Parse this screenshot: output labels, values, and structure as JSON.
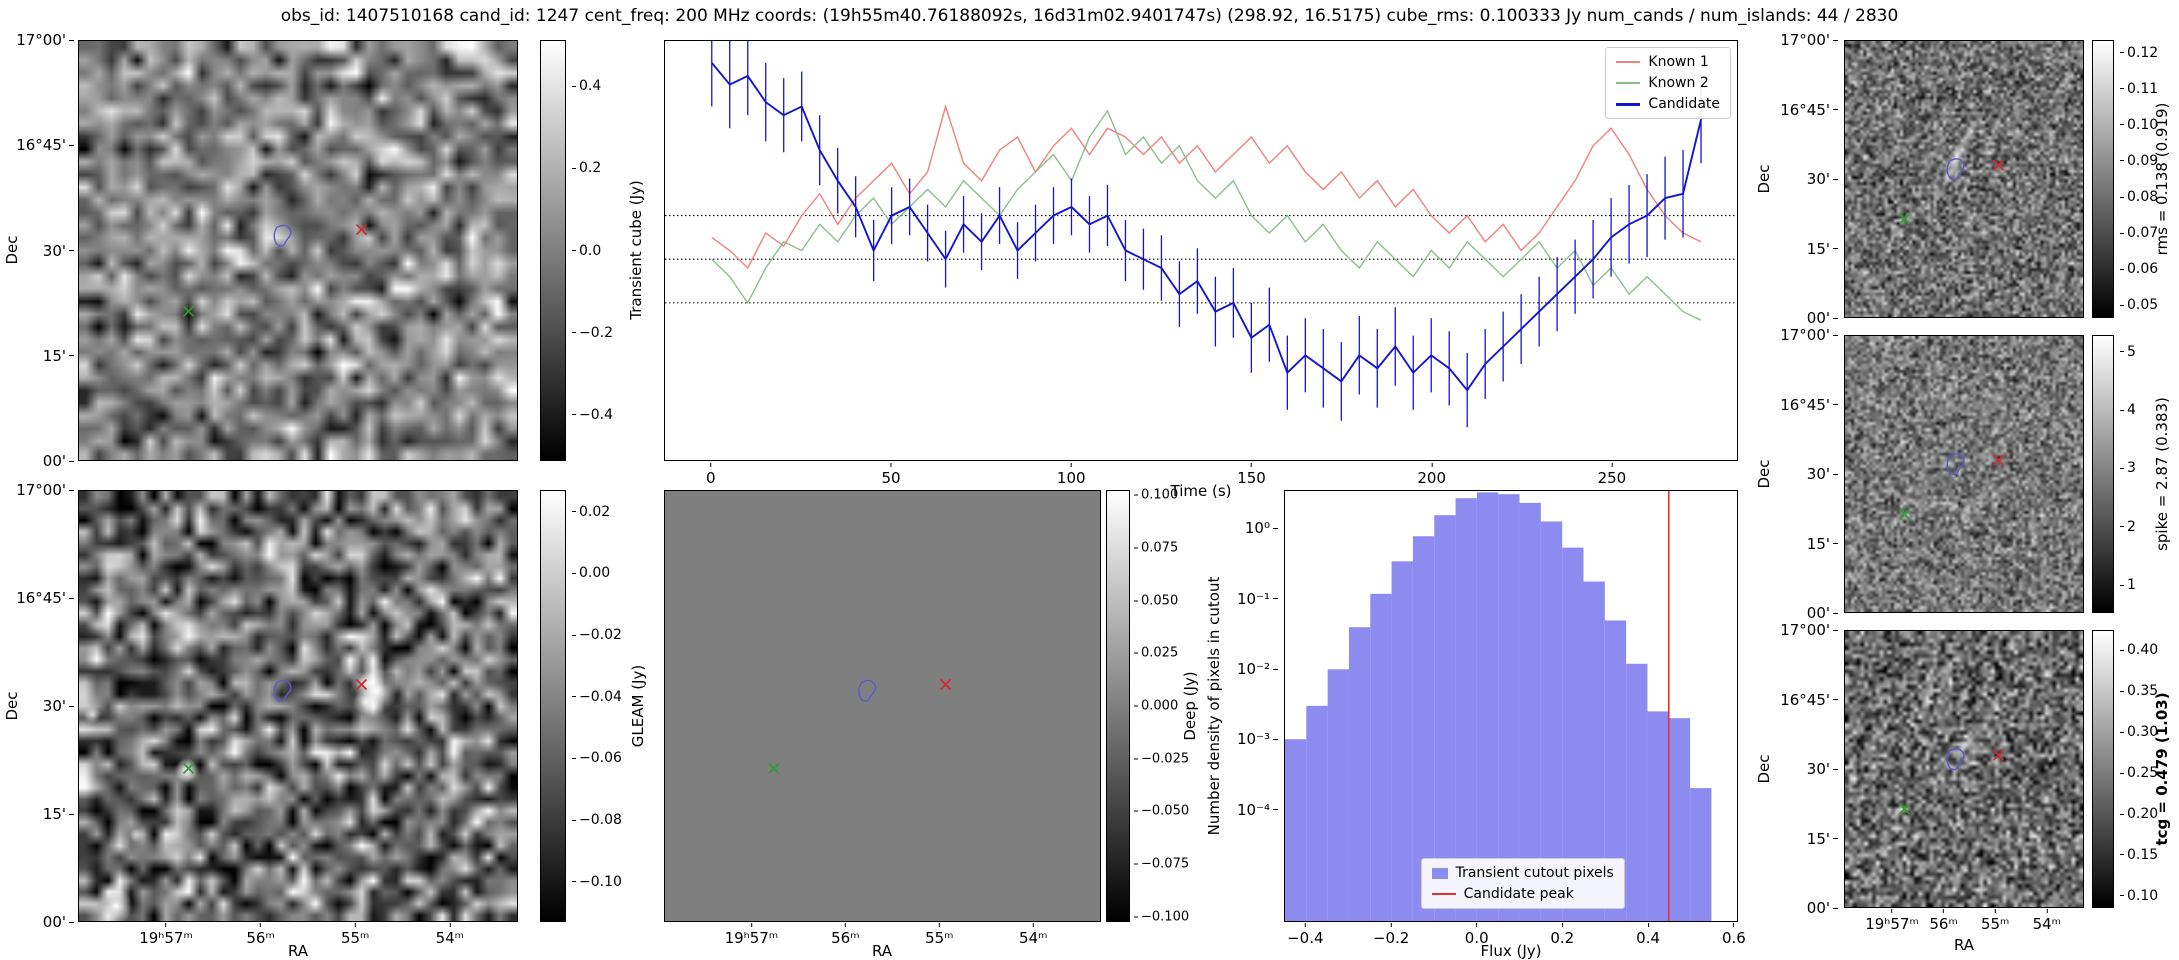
{
  "title": "obs_id: 1407510168 cand_id: 1247 cent_freq: 200 MHz coords: (19h55m40.76188092s, 16d31m02.9401747s) (298.92, 16.5175) cube_rms: 0.100333 Jy num_cands / num_islands: 44 / 2830",
  "axes": {
    "dec_label": "Dec",
    "ra_label": "RA",
    "dec_ticks": [
      "17°00'",
      "16°45'",
      "30'",
      "15'",
      "00'"
    ],
    "ra_ticks": [
      "19ʰ57ᵐ",
      "56ᵐ",
      "55ᵐ",
      "54ᵐ"
    ]
  },
  "colorbars": {
    "transient": {
      "label": "Transient cube (Jy)",
      "ticks": [
        "0.4",
        "0.2",
        "0.0",
        "−0.2",
        "−0.4"
      ]
    },
    "gleam": {
      "label": "GLEAM (Jy)",
      "ticks": [
        "0.02",
        "0.00",
        "−0.02",
        "−0.04",
        "−0.06",
        "−0.08",
        "−0.10"
      ]
    },
    "deep": {
      "label": "Deep (Jy)",
      "ticks": [
        "0.100",
        "0.075",
        "0.050",
        "0.025",
        "0.000",
        "−0.025",
        "−0.050",
        "−0.075",
        "−0.100"
      ]
    },
    "rms": {
      "label": "rms = 0.138 (0.919)",
      "ticks": [
        "0.12",
        "0.11",
        "0.10",
        "0.09",
        "0.08",
        "0.07",
        "0.06",
        "0.05"
      ]
    },
    "spike": {
      "label": "spike = 2.87 (0.383)",
      "ticks": [
        "5",
        "4",
        "3",
        "2",
        "1"
      ]
    },
    "tcg": {
      "label": "tcg = 0.479 (1.03)",
      "ticks": [
        "0.40",
        "0.35",
        "0.30",
        "0.25",
        "0.20",
        "0.15",
        "0.10"
      ]
    }
  },
  "markers": {
    "contour": {
      "x": 0.465,
      "y": 0.465
    },
    "red_x": {
      "x": 0.645,
      "y": 0.45
    },
    "green_x": {
      "x": 0.25,
      "y": 0.645
    }
  },
  "colors": {
    "contour": "#5a5acd",
    "red_marker": "#d42a2a",
    "green_marker": "#2f9e2f"
  },
  "chart_data": [
    {
      "type": "line",
      "title": "",
      "xlabel": "Time (s)",
      "ylabel": "",
      "xlim": [
        -13,
        285
      ],
      "ylim": [
        -0.46,
        0.5
      ],
      "x_tick_labels": [
        "0",
        "50",
        "100",
        "150",
        "200",
        "250"
      ],
      "hlines": [
        0.1,
        0.0,
        -0.1
      ],
      "legend_position": "upper right",
      "x": [
        0,
        5,
        10,
        15,
        20,
        25,
        30,
        35,
        40,
        45,
        50,
        55,
        60,
        65,
        70,
        75,
        80,
        85,
        90,
        95,
        100,
        105,
        110,
        115,
        120,
        125,
        130,
        135,
        140,
        145,
        150,
        155,
        160,
        165,
        170,
        175,
        180,
        185,
        190,
        195,
        200,
        205,
        210,
        215,
        220,
        225,
        230,
        235,
        240,
        245,
        250,
        255,
        260,
        265,
        270,
        275
      ],
      "series": [
        {
          "name": "Known 1",
          "color": "#f28080",
          "values": [
            0.05,
            0.02,
            -0.02,
            0.06,
            0.03,
            0.1,
            0.15,
            0.08,
            0.14,
            0.18,
            0.22,
            0.15,
            0.2,
            0.35,
            0.22,
            0.18,
            0.25,
            0.28,
            0.2,
            0.26,
            0.3,
            0.24,
            0.3,
            0.28,
            0.24,
            0.28,
            0.22,
            0.26,
            0.2,
            0.24,
            0.28,
            0.22,
            0.26,
            0.2,
            0.16,
            0.2,
            0.14,
            0.18,
            0.12,
            0.16,
            0.1,
            0.06,
            0.1,
            0.04,
            0.08,
            0.02,
            0.06,
            0.12,
            0.18,
            0.26,
            0.3,
            0.24,
            0.16,
            0.1,
            0.06,
            0.04
          ]
        },
        {
          "name": "Known 2",
          "color": "#8dbf8d",
          "values": [
            0.0,
            -0.04,
            -0.1,
            -0.02,
            0.04,
            0.02,
            0.08,
            0.04,
            0.1,
            0.14,
            0.08,
            0.12,
            0.16,
            0.12,
            0.18,
            0.14,
            0.1,
            0.16,
            0.2,
            0.24,
            0.18,
            0.28,
            0.34,
            0.24,
            0.28,
            0.22,
            0.26,
            0.18,
            0.14,
            0.18,
            0.1,
            0.06,
            0.1,
            0.04,
            0.08,
            0.02,
            -0.02,
            0.04,
            0.0,
            -0.04,
            0.02,
            -0.02,
            0.04,
            0.0,
            -0.04,
            0.0,
            0.04,
            -0.02,
            0.02,
            -0.06,
            -0.02,
            -0.08,
            -0.04,
            -0.08,
            -0.12,
            -0.14
          ]
        },
        {
          "name": "Candidate",
          "color": "#1515cf",
          "values": [
            0.45,
            0.4,
            0.42,
            0.36,
            0.33,
            0.35,
            0.25,
            0.18,
            0.12,
            0.02,
            0.1,
            0.12,
            0.06,
            0.0,
            0.08,
            0.04,
            0.1,
            0.02,
            0.06,
            0.1,
            0.12,
            0.08,
            0.1,
            0.02,
            0.0,
            -0.02,
            -0.08,
            -0.05,
            -0.12,
            -0.1,
            -0.18,
            -0.15,
            -0.26,
            -0.22,
            -0.25,
            -0.28,
            -0.22,
            -0.25,
            -0.2,
            -0.26,
            -0.22,
            -0.25,
            -0.3,
            -0.24,
            -0.2,
            -0.16,
            -0.12,
            -0.08,
            -0.04,
            0.0,
            0.05,
            0.08,
            0.1,
            0.14,
            0.15,
            0.32
          ],
          "errors": [
            0.1,
            0.1,
            0.09,
            0.09,
            0.085,
            0.08,
            0.08,
            0.075,
            0.07,
            0.07,
            0.065,
            0.065,
            0.065,
            0.065,
            0.065,
            0.065,
            0.065,
            0.065,
            0.065,
            0.065,
            0.065,
            0.065,
            0.07,
            0.07,
            0.07,
            0.075,
            0.075,
            0.075,
            0.08,
            0.08,
            0.08,
            0.085,
            0.085,
            0.085,
            0.09,
            0.09,
            0.09,
            0.09,
            0.09,
            0.085,
            0.085,
            0.085,
            0.085,
            0.08,
            0.08,
            0.08,
            0.08,
            0.085,
            0.085,
            0.09,
            0.09,
            0.09,
            0.095,
            0.095,
            0.1,
            0.1
          ]
        }
      ]
    },
    {
      "type": "bar",
      "title": "",
      "xlabel": "Flux (Jy)",
      "ylabel": "Number density of pixels in cutout",
      "xlim": [
        -0.45,
        0.61
      ],
      "ylim_log": [
        -5.6,
        0.55
      ],
      "x_tick_labels": [
        "−0.4",
        "−0.2",
        "0.0",
        "0.2",
        "0.4",
        "0.6"
      ],
      "y_tick_labels": [
        "10⁰",
        "10⁻¹",
        "10⁻²",
        "10⁻³",
        "10⁻⁴"
      ],
      "bin_start": -0.45,
      "bin_width": 0.05,
      "values": [
        0.001,
        0.003,
        0.01,
        0.04,
        0.12,
        0.35,
        0.8,
        1.6,
        2.8,
        3.4,
        3.2,
        2.4,
        1.3,
        0.55,
        0.18,
        0.05,
        0.012,
        0.0025,
        0.002,
        0.0002
      ],
      "candidate_peak": 0.45,
      "legend_labels": [
        "Transient cutout pixels",
        "Candidate peak"
      ],
      "bar_color": "#8b8bf0",
      "line_color": "#e03030"
    }
  ]
}
